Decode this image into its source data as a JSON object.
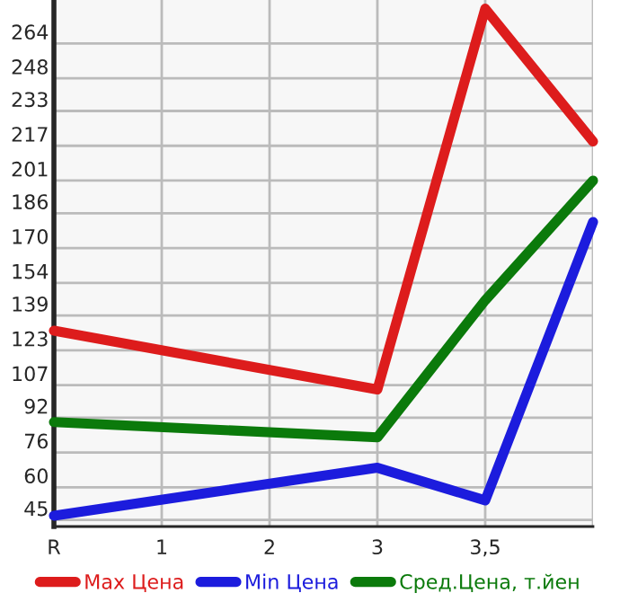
{
  "chart_data": {
    "type": "line",
    "categories": [
      "R",
      "1",
      "2",
      "3",
      "3,5",
      null
    ],
    "ylim": [
      42,
      284
    ],
    "yticks": [
      45,
      60,
      76,
      92,
      107,
      123,
      139,
      154,
      170,
      186,
      201,
      217,
      233,
      248,
      264
    ],
    "grid": true,
    "legend": "bottom",
    "marker": "none",
    "line_style": "solid",
    "series": [
      {
        "name": "Max Цена",
        "color": "#dd1c1c",
        "values": [
          132,
          null,
          null,
          105,
          280,
          219
        ]
      },
      {
        "name": "Min Цена",
        "color": "#1c1cdd",
        "values": [
          47,
          null,
          null,
          69,
          54,
          182
        ]
      },
      {
        "name": "Сред.Цена, т.йен",
        "color": "#0b7a0b",
        "values": [
          90,
          null,
          null,
          83,
          146,
          201
        ]
      }
    ]
  }
}
